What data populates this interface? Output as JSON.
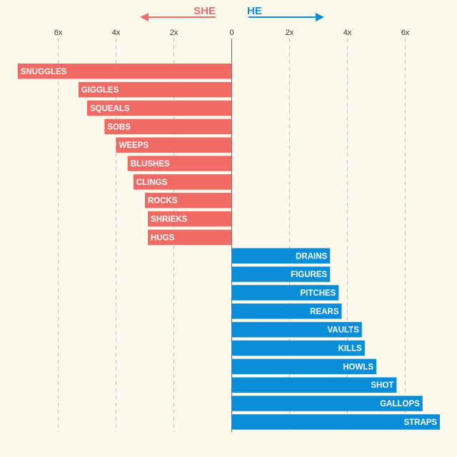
{
  "chart_data": {
    "type": "bar",
    "orientation": "horizontal-diverging",
    "title": "",
    "xlabel": "",
    "ylabel": "",
    "xlim": [
      -7.5,
      7.5
    ],
    "x_ticks": [
      -6,
      -4,
      -2,
      0,
      2,
      4,
      6
    ],
    "x_tick_labels": [
      "6x",
      "4x",
      "2x",
      "0",
      "2x",
      "4x",
      "6x"
    ],
    "grid": true,
    "direction_labels": {
      "left": "SHE",
      "right": "HE"
    },
    "series": [
      {
        "name": "SHE",
        "color": "#f06b66",
        "categories": [
          "SNUGGLES",
          "GIGGLES",
          "SQUEALS",
          "SOBS",
          "WEEPS",
          "BLUSHES",
          "CLINGS",
          "ROCKS",
          "SHRIEKS",
          "HUGS"
        ],
        "values": [
          7.4,
          5.3,
          5.0,
          4.4,
          4.0,
          3.6,
          3.4,
          3.0,
          2.9,
          2.9
        ]
      },
      {
        "name": "HE",
        "color": "#0a8ed9",
        "categories": [
          "DRAINS",
          "FIGURES",
          "PITCHES",
          "REARS",
          "VAULTS",
          "KILLS",
          "HOWLS",
          "SHOT",
          "GALLOPS",
          "STRAPS"
        ],
        "values": [
          3.4,
          3.4,
          3.7,
          3.8,
          4.5,
          4.6,
          5.0,
          5.7,
          6.6,
          7.2
        ]
      }
    ]
  }
}
